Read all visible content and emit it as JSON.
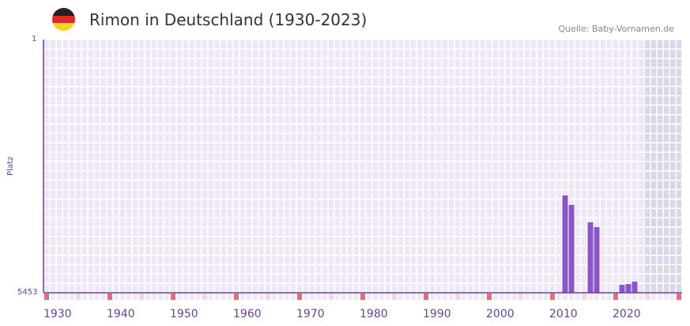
{
  "header": {
    "title": "Rimon in Deutschland (1930-2023)",
    "source": "Quelle: Baby-Vornamen.de"
  },
  "colors": {
    "bar": "#8b55c8",
    "axis": "#6a3fa0",
    "marker": "#e07078",
    "marker_light": "#f2d6e0"
  },
  "chart_data": {
    "type": "bar",
    "title": "Rimon in Deutschland (1930-2023)",
    "ylabel": "Platz",
    "ylim": [
      1,
      5453
    ],
    "y_inverted": true,
    "ytick_labels": [
      "1",
      "5453"
    ],
    "xlim": [
      1928,
      2028
    ],
    "xtick_labels": [
      "1930",
      "1940",
      "1950",
      "1960",
      "1970",
      "1980",
      "1990",
      "2000",
      "2010",
      "2020"
    ],
    "xtick_values": [
      1930,
      1940,
      1950,
      1960,
      1970,
      1980,
      1990,
      2000,
      2010,
      2020
    ],
    "shaded_from_year": 2023,
    "x": [
      2010,
      2011,
      2014,
      2015,
      2019,
      2020,
      2021
    ],
    "values": [
      3356,
      3561,
      3936,
      4038,
      5282,
      5265,
      5214
    ]
  }
}
